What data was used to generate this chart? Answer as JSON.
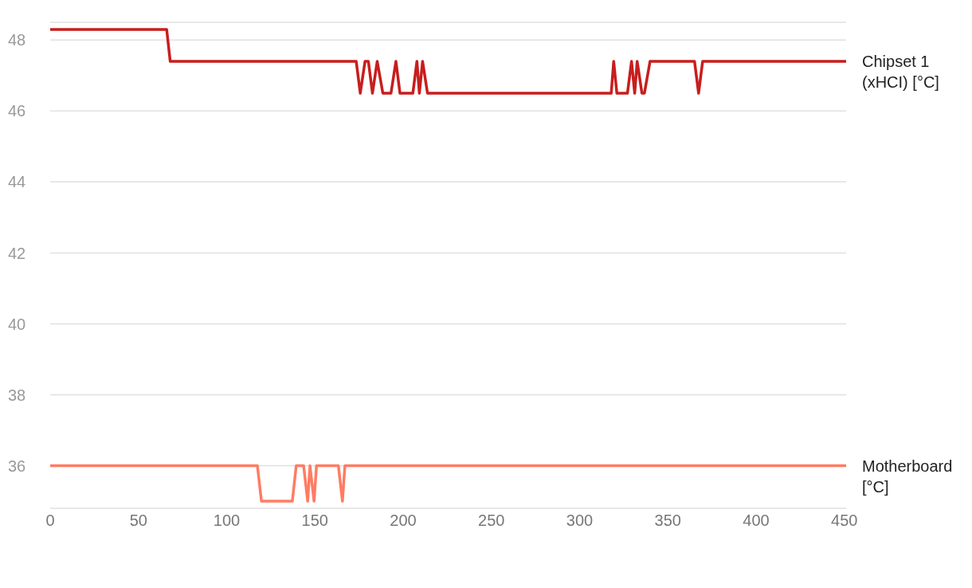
{
  "chart_data": {
    "type": "line",
    "xlim": [
      0,
      451
    ],
    "xticks": [
      0,
      50,
      100,
      150,
      200,
      250,
      300,
      350,
      400,
      450
    ],
    "ylim": [
      34.8,
      48.5
    ],
    "yticks": [
      36,
      38,
      40,
      42,
      44,
      46,
      48
    ],
    "grid": "y",
    "legend": false,
    "marker": "none",
    "line_style": "solid",
    "series": [
      {
        "name": "Chipset 1 (xHCI) [°C]",
        "color": "#c71e1d",
        "x": [
          0,
          66,
          68,
          173.4,
          175.7,
          178.4,
          180.3,
          182.6,
          185.3,
          188.5,
          193.1,
          195.9,
          198.2,
          205.5,
          207.8,
          209.2,
          211,
          213.8,
          317.9,
          319.3,
          321.1,
          327.1,
          329.4,
          331.2,
          332.6,
          335.3,
          336.7,
          339.9,
          365.1,
          367.4,
          369.7,
          451
        ],
        "values": [
          48.3,
          48.3,
          47.4,
          47.4,
          46.5,
          47.4,
          47.4,
          46.5,
          47.4,
          46.5,
          46.5,
          47.4,
          46.5,
          46.5,
          47.4,
          46.5,
          47.4,
          46.5,
          46.5,
          47.4,
          46.5,
          46.5,
          47.4,
          46.5,
          47.4,
          46.5,
          46.5,
          47.4,
          47.4,
          46.5,
          47.4,
          47.4
        ]
      },
      {
        "name": "Motherboard [°C]",
        "color": "#ff7c63",
        "x": [
          0,
          117.4,
          119.7,
          137.2,
          139.4,
          143.6,
          145.9,
          147.2,
          149.5,
          150.9,
          163.3,
          165.6,
          167,
          451
        ],
        "values": [
          36,
          36,
          35,
          35,
          36,
          36,
          35,
          36,
          35,
          36,
          36,
          35,
          36,
          36
        ]
      }
    ]
  }
}
